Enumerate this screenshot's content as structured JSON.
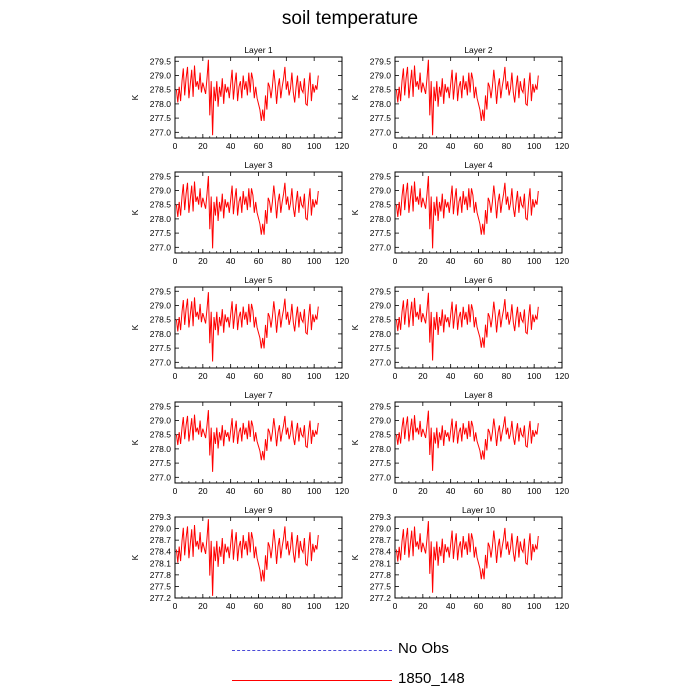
{
  "figure": {
    "title": "soil temperature"
  },
  "legend": {
    "items": [
      {
        "label": "No Obs",
        "color": "#4b4bd8",
        "style": "dashed"
      },
      {
        "label": "1850_148",
        "color": "#ff0000",
        "style": "solid"
      }
    ]
  },
  "colors": {
    "series": "#ff0000",
    "axis": "#000000"
  },
  "chart_data": {
    "type": "line",
    "layout": "5x2 grid of panels",
    "base_series": [
      278.5,
      278.05,
      278.6,
      278.1,
      278.8,
      279.25,
      278.3,
      278.9,
      279.3,
      278.2,
      278.7,
      279.2,
      278.25,
      279.35,
      278.6,
      278.8,
      278.5,
      279.1,
      278.4,
      278.75,
      278.55,
      278.35,
      278.9,
      279.55,
      277.6,
      278.8,
      276.9,
      278.6,
      278.1,
      278.8,
      277.9,
      278.6,
      278.25,
      278.9,
      278.0,
      278.7,
      278.4,
      278.6,
      278.2,
      278.7,
      279.2,
      278.15,
      278.7,
      279.1,
      278.1,
      278.6,
      278.8,
      278.2,
      279.0,
      278.5,
      278.8,
      278.3,
      279.1,
      278.4,
      279.1,
      278.85,
      278.2,
      278.6,
      278.2,
      278.0,
      277.8,
      277.4,
      277.8,
      277.4,
      278.3,
      277.8,
      278.75,
      278.6,
      278.2,
      278.6,
      279.2,
      278.7,
      278.0,
      278.6,
      278.9,
      278.2,
      278.6,
      278.9,
      279.3,
      278.5,
      278.8,
      278.3,
      278.55,
      279.1,
      278.4,
      278.05,
      278.6,
      279.0,
      278.2,
      278.8,
      278.5,
      278.4,
      278.9,
      278.0,
      277.95,
      278.6,
      279.1,
      278.1,
      278.7,
      278.4,
      278.65,
      278.5,
      279.0
    ],
    "panels": [
      {
        "title": "Layer 1",
        "xlabel": "",
        "ylabel": "K",
        "xlim": [
          0,
          120
        ],
        "ylim": [
          276.8,
          279.65
        ],
        "xticks": [
          0,
          20,
          40,
          60,
          80,
          100,
          120
        ],
        "yticks": [
          "277.0",
          "277.5",
          "278.0",
          "278.5",
          "279.0",
          "279.5"
        ],
        "amplitude": 1.0,
        "offset": 0.0
      },
      {
        "title": "Layer 2",
        "xlabel": "",
        "ylabel": "K",
        "xlim": [
          0,
          120
        ],
        "ylim": [
          276.8,
          279.65
        ],
        "xticks": [
          0,
          20,
          40,
          60,
          80,
          100,
          120
        ],
        "yticks": [
          "277.0",
          "277.5",
          "278.0",
          "278.5",
          "279.0",
          "279.5"
        ],
        "amplitude": 1.0,
        "offset": 0.0
      },
      {
        "title": "Layer 3",
        "xlabel": "",
        "ylabel": "K",
        "xlim": [
          0,
          120
        ],
        "ylim": [
          276.8,
          279.65
        ],
        "xticks": [
          0,
          20,
          40,
          60,
          80,
          100,
          120
        ],
        "yticks": [
          "277.0",
          "277.5",
          "278.0",
          "278.5",
          "279.0",
          "279.5"
        ],
        "amplitude": 0.96,
        "offset": 0.0
      },
      {
        "title": "Layer 4",
        "xlabel": "",
        "ylabel": "K",
        "xlim": [
          0,
          120
        ],
        "ylim": [
          276.8,
          279.65
        ],
        "xticks": [
          0,
          20,
          40,
          60,
          80,
          100,
          120
        ],
        "yticks": [
          "277.0",
          "277.5",
          "278.0",
          "278.5",
          "279.0",
          "279.5"
        ],
        "amplitude": 0.96,
        "offset": 0.0
      },
      {
        "title": "Layer 5",
        "xlabel": "",
        "ylabel": "K",
        "xlim": [
          0,
          120
        ],
        "ylim": [
          276.8,
          279.65
        ],
        "xticks": [
          0,
          20,
          40,
          60,
          80,
          100,
          120
        ],
        "yticks": [
          "277.0",
          "277.5",
          "278.0",
          "278.5",
          "279.0",
          "279.5"
        ],
        "amplitude": 0.92,
        "offset": 0.0
      },
      {
        "title": "Layer 6",
        "xlabel": "",
        "ylabel": "K",
        "xlim": [
          0,
          120
        ],
        "ylim": [
          276.8,
          279.65
        ],
        "xticks": [
          0,
          20,
          40,
          60,
          80,
          100,
          120
        ],
        "yticks": [
          "277.0",
          "277.5",
          "278.0",
          "278.5",
          "279.0",
          "279.5"
        ],
        "amplitude": 0.9,
        "offset": 0.0
      },
      {
        "title": "Layer 7",
        "xlabel": "",
        "ylabel": "K",
        "xlim": [
          0,
          120
        ],
        "ylim": [
          276.8,
          279.65
        ],
        "xticks": [
          0,
          20,
          40,
          60,
          80,
          100,
          120
        ],
        "yticks": [
          "277.0",
          "277.5",
          "278.0",
          "278.5",
          "279.0",
          "279.5"
        ],
        "amplitude": 0.82,
        "offset": 0.0
      },
      {
        "title": "Layer 8",
        "xlabel": "",
        "ylabel": "K",
        "xlim": [
          0,
          120
        ],
        "ylim": [
          276.8,
          279.65
        ],
        "xticks": [
          0,
          20,
          40,
          60,
          80,
          100,
          120
        ],
        "yticks": [
          "277.0",
          "277.5",
          "278.0",
          "278.5",
          "279.0",
          "279.5"
        ],
        "amplitude": 0.8,
        "offset": 0.0
      },
      {
        "title": "Layer 9",
        "xlabel": "",
        "ylabel": "K",
        "xlim": [
          0,
          120
        ],
        "ylim": [
          277.2,
          279.3
        ],
        "xticks": [
          0,
          20,
          40,
          60,
          80,
          100,
          120
        ],
        "yticks": [
          "277.2",
          "277.5",
          "277.8",
          "278.1",
          "278.4",
          "278.7",
          "279.0",
          "279.3"
        ],
        "amplitude": 0.75,
        "offset": -0.05
      },
      {
        "title": "Layer 10",
        "xlabel": "",
        "ylabel": "K",
        "xlim": [
          0,
          120
        ],
        "ylim": [
          277.2,
          279.3
        ],
        "xticks": [
          0,
          20,
          40,
          60,
          80,
          100,
          120
        ],
        "yticks": [
          "277.2",
          "277.5",
          "277.8",
          "278.1",
          "278.4",
          "278.7",
          "279.0",
          "279.3"
        ],
        "amplitude": 0.7,
        "offset": -0.05
      }
    ]
  }
}
